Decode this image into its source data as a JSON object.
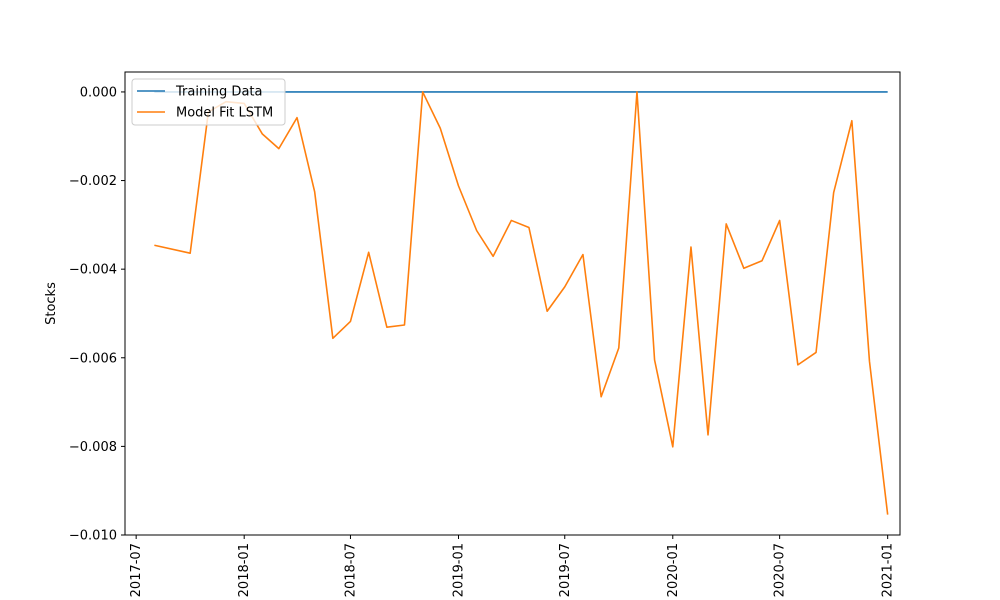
{
  "chart_data": {
    "type": "line",
    "title": "",
    "xlabel": "",
    "ylabel": "Stocks",
    "xlim": [
      "2017-06-12",
      "2021-01-22"
    ],
    "ylim": [
      -0.01,
      0.00045
    ],
    "x_ticks": [
      "2017-07",
      "2018-01",
      "2018-07",
      "2019-01",
      "2019-07",
      "2020-01",
      "2020-07",
      "2021-01"
    ],
    "y_ticks": [
      "0.000",
      "−0.002",
      "−0.004",
      "−0.006",
      "−0.008",
      "−0.010"
    ],
    "y_tick_values": [
      0.0,
      -0.002,
      -0.004,
      -0.006,
      -0.008,
      -0.01
    ],
    "grid": false,
    "legend_placement": "upper-left",
    "series": [
      {
        "name": "Training Data",
        "color": "#1f77b4",
        "points": [
          [
            "2017-08-01",
            0.0
          ],
          [
            "2021-01-01",
            0.0
          ]
        ]
      },
      {
        "name": "Model Fit LSTM",
        "color": "#ff7f0e",
        "points": [
          [
            "2017-08-01",
            -0.00346
          ],
          [
            "2017-10-01",
            -0.00364
          ],
          [
            "2017-11-01",
            -0.00045
          ],
          [
            "2017-12-01",
            -0.00022
          ],
          [
            "2018-01-01",
            -0.00026
          ],
          [
            "2018-02-01",
            -0.00095
          ],
          [
            "2018-03-01",
            -0.00128
          ],
          [
            "2018-04-01",
            -0.00058
          ],
          [
            "2018-05-01",
            -0.00225
          ],
          [
            "2018-06-01",
            -0.00556
          ],
          [
            "2018-07-01",
            -0.00518
          ],
          [
            "2018-08-01",
            -0.00362
          ],
          [
            "2018-09-01",
            -0.00531
          ],
          [
            "2018-10-01",
            -0.00526
          ],
          [
            "2018-11-01",
            0.0
          ],
          [
            "2018-12-01",
            -0.00082
          ],
          [
            "2019-01-01",
            -0.00212
          ],
          [
            "2019-02-01",
            -0.00313
          ],
          [
            "2019-03-01",
            -0.00371
          ],
          [
            "2019-04-01",
            -0.0029
          ],
          [
            "2019-05-01",
            -0.00306
          ],
          [
            "2019-06-01",
            -0.00495
          ],
          [
            "2019-07-01",
            -0.0044
          ],
          [
            "2019-08-01",
            -0.00367
          ],
          [
            "2019-09-01",
            -0.00688
          ],
          [
            "2019-10-01",
            -0.00578
          ],
          [
            "2019-11-01",
            0.0
          ],
          [
            "2019-12-01",
            -0.00605
          ],
          [
            "2020-01-01",
            -0.00801
          ],
          [
            "2020-02-01",
            -0.0035
          ],
          [
            "2020-03-01",
            -0.00774
          ],
          [
            "2020-04-01",
            -0.00298
          ],
          [
            "2020-05-01",
            -0.00398
          ],
          [
            "2020-06-01",
            -0.00381
          ],
          [
            "2020-07-01",
            -0.0029
          ],
          [
            "2020-08-01",
            -0.00616
          ],
          [
            "2020-09-01",
            -0.00588
          ],
          [
            "2020-10-01",
            -0.00227
          ],
          [
            "2020-11-01",
            -0.00065
          ],
          [
            "2020-12-01",
            -0.00608
          ],
          [
            "2021-01-01",
            -0.00954
          ]
        ]
      }
    ]
  }
}
